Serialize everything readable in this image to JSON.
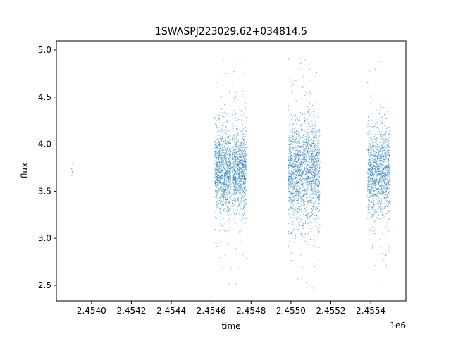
{
  "chart_data": {
    "type": "scatter",
    "title": "1SWASPJ223029.62+034814.5",
    "xlabel": "time",
    "ylabel": "flux",
    "x_offset_label": "1e6",
    "xlim": [
      2453824,
      2455576
    ],
    "ylim": [
      2.335,
      5.097
    ],
    "x_ticks": [
      2454000,
      2454200,
      2454400,
      2454600,
      2454800,
      2455000,
      2455200,
      2455400
    ],
    "x_tick_labels": [
      "2.4540",
      "2.4542",
      "2.4544",
      "2.4546",
      "2.4548",
      "2.4550",
      "2.4552",
      "2.4554"
    ],
    "y_ticks": [
      2.5,
      3.0,
      3.5,
      4.0,
      4.5,
      5.0
    ],
    "y_tick_labels": [
      "2.5",
      "3.0",
      "3.5",
      "4.0",
      "4.5",
      "5.0"
    ],
    "grid": false,
    "legend": "none",
    "marker_color": "#1f77b4",
    "series_clusters": [
      {
        "time_range": [
          2453900,
          2453904
        ],
        "flux_mean": 3.75,
        "flux_sd": 0.06,
        "count": 12,
        "flux_range": [
          3.64,
          3.85
        ]
      },
      {
        "time_range": [
          2454618,
          2454700
        ],
        "flux_mean": 3.72,
        "flux_sd": 0.22,
        "count": 1400,
        "flux_range": [
          2.47,
          4.97
        ]
      },
      {
        "time_range": [
          2454705,
          2454776
        ],
        "flux_mean": 3.72,
        "flux_sd": 0.22,
        "count": 1200,
        "flux_range": [
          2.47,
          4.97
        ]
      },
      {
        "time_range": [
          2454986,
          2455145
        ],
        "flux_mean": 3.72,
        "flux_sd": 0.26,
        "count": 2400,
        "flux_range": [
          2.47,
          4.97
        ]
      },
      {
        "time_range": [
          2455384,
          2455497
        ],
        "flux_mean": 3.72,
        "flux_sd": 0.22,
        "count": 1700,
        "flux_range": [
          2.47,
          4.95
        ]
      }
    ]
  }
}
